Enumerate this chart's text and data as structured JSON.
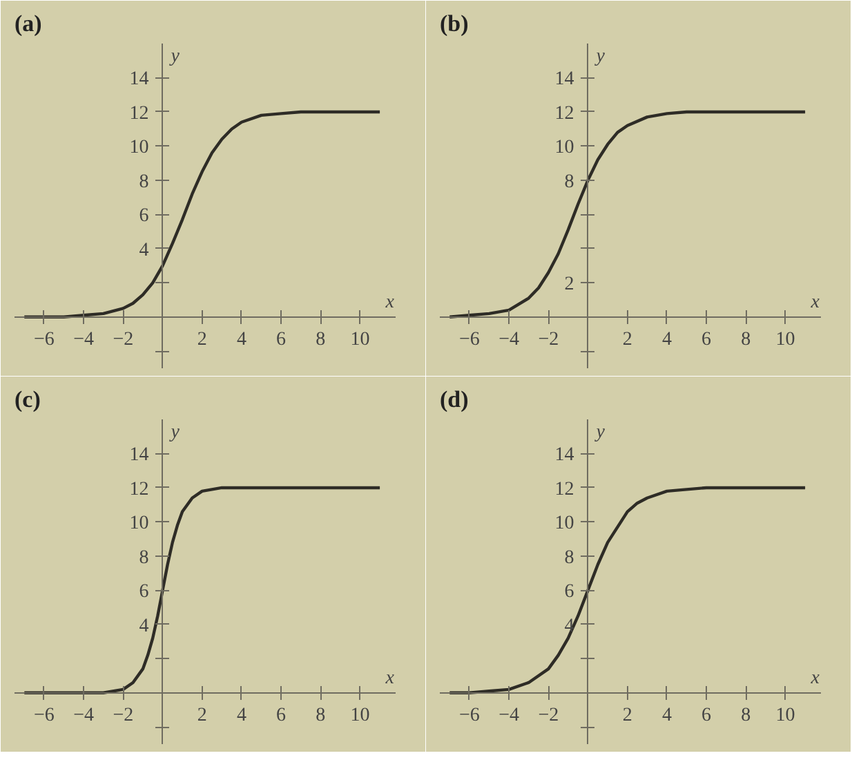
{
  "chart_data": [
    {
      "type": "line",
      "title": "(a)",
      "xlabel": "x",
      "ylabel": "y",
      "xlim": [
        -7.5,
        11.8
      ],
      "ylim": [
        -3,
        16
      ],
      "xticks": [
        {
          "value": -6,
          "label": "−6"
        },
        {
          "value": -4,
          "label": "−4"
        },
        {
          "value": -2,
          "label": "−2"
        },
        2,
        4,
        6,
        8,
        10
      ],
      "yticks": [
        {
          "value": -2,
          "label": null
        },
        {
          "value": 2,
          "label": null
        },
        4,
        6,
        8,
        10,
        12,
        14
      ],
      "x": [
        -7,
        -6,
        -5,
        -4,
        -3,
        -2,
        -1.5,
        -1,
        -0.5,
        0,
        0.5,
        1,
        1.5,
        2,
        2.5,
        3,
        3.5,
        4,
        5,
        6,
        7,
        8,
        9,
        10,
        11
      ],
      "series": [
        {
          "color": "#2e2c26",
          "values": [
            0,
            0,
            0,
            0.1,
            0.2,
            0.5,
            0.8,
            1.3,
            2.0,
            3,
            4.3,
            5.7,
            7.2,
            8.5,
            9.6,
            10.4,
            11.0,
            11.4,
            11.8,
            11.9,
            12,
            12,
            12,
            12,
            12
          ]
        }
      ]
    },
    {
      "type": "line",
      "title": "(b)",
      "xlabel": "x",
      "ylabel": "y",
      "xlim": [
        -7.5,
        11.8
      ],
      "ylim": [
        -3,
        16
      ],
      "xticks": [
        {
          "value": -6,
          "label": "−6"
        },
        {
          "value": -4,
          "label": "−4"
        },
        {
          "value": -2,
          "label": "−2"
        },
        2,
        4,
        6,
        8,
        10
      ],
      "yticks": [
        {
          "value": -2,
          "label": null
        },
        2,
        {
          "value": 4,
          "label": null
        },
        {
          "value": 6,
          "label": null
        },
        8,
        10,
        12,
        14
      ],
      "x": [
        -7,
        -6,
        -5,
        -4,
        -3,
        -2.5,
        -2,
        -1.5,
        -1,
        -0.5,
        0,
        0.5,
        1,
        1.5,
        2,
        3,
        4,
        5,
        6,
        7,
        8,
        9,
        10,
        11
      ],
      "series": [
        {
          "color": "#2e2c26",
          "values": [
            0,
            0.1,
            0.2,
            0.4,
            1.1,
            1.7,
            2.6,
            3.7,
            5.1,
            6.6,
            8,
            9.2,
            10.1,
            10.8,
            11.2,
            11.7,
            11.9,
            12,
            12,
            12,
            12,
            12,
            12,
            12
          ]
        }
      ]
    },
    {
      "type": "line",
      "title": "(c)",
      "xlabel": "x",
      "ylabel": "y",
      "xlim": [
        -7.5,
        11.8
      ],
      "ylim": [
        -3,
        16
      ],
      "xticks": [
        {
          "value": -6,
          "label": "−6"
        },
        {
          "value": -4,
          "label": "−4"
        },
        {
          "value": -2,
          "label": "−2"
        },
        2,
        4,
        6,
        8,
        10
      ],
      "yticks": [
        {
          "value": -2,
          "label": null
        },
        {
          "value": 2,
          "label": null
        },
        4,
        6,
        8,
        10,
        12,
        14
      ],
      "x": [
        -7,
        -5,
        -3,
        -2,
        -1.5,
        -1,
        -0.75,
        -0.5,
        -0.25,
        0,
        0.25,
        0.5,
        0.75,
        1,
        1.5,
        2,
        3,
        4,
        6,
        8,
        10,
        11
      ],
      "series": [
        {
          "color": "#2e2c26",
          "values": [
            0,
            0,
            0,
            0.2,
            0.6,
            1.4,
            2.2,
            3.2,
            4.5,
            6,
            7.5,
            8.8,
            9.8,
            10.6,
            11.4,
            11.8,
            12,
            12,
            12,
            12,
            12,
            12
          ]
        }
      ]
    },
    {
      "type": "line",
      "title": "(d)",
      "xlabel": "x",
      "ylabel": "y",
      "xlim": [
        -7.5,
        11.8
      ],
      "ylim": [
        -3,
        16
      ],
      "xticks": [
        {
          "value": -6,
          "label": "−6"
        },
        {
          "value": -4,
          "label": "−4"
        },
        {
          "value": -2,
          "label": "−2"
        },
        2,
        4,
        6,
        8,
        10
      ],
      "yticks": [
        {
          "value": -2,
          "label": null
        },
        {
          "value": 2,
          "label": null
        },
        4,
        6,
        8,
        10,
        12,
        14
      ],
      "x": [
        -7,
        -6,
        -5,
        -4,
        -3,
        -2,
        -1.5,
        -1,
        -0.5,
        0,
        0.5,
        1,
        1.5,
        2,
        2.5,
        3,
        4,
        5,
        6,
        7,
        8,
        9,
        10,
        11
      ],
      "series": [
        {
          "color": "#2e2c26",
          "values": [
            0,
            0,
            0.1,
            0.2,
            0.6,
            1.4,
            2.2,
            3.2,
            4.5,
            6,
            7.5,
            8.8,
            9.7,
            10.6,
            11.1,
            11.4,
            11.8,
            11.9,
            12,
            12,
            12,
            12,
            12,
            12
          ]
        }
      ]
    }
  ]
}
